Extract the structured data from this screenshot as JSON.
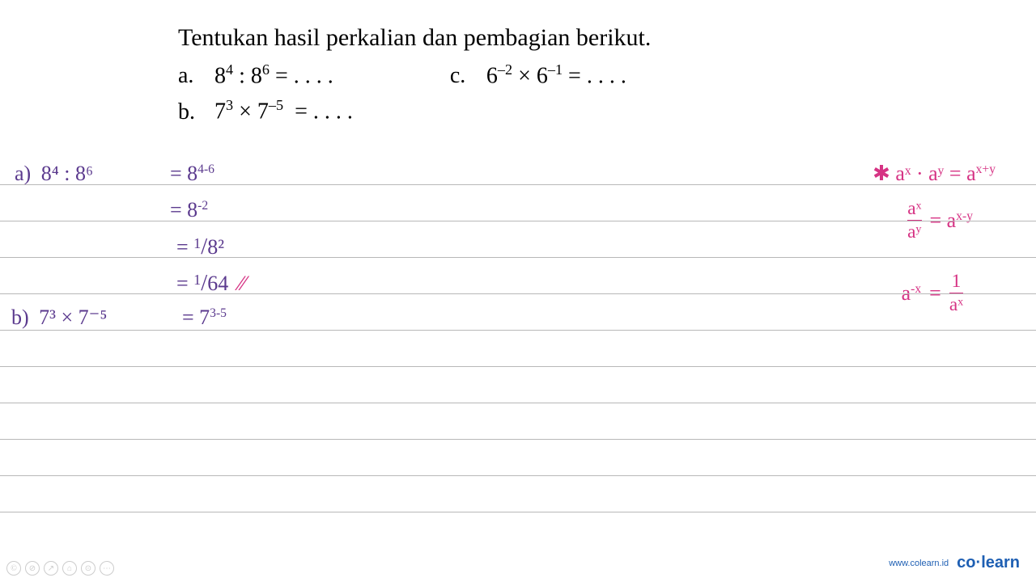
{
  "header": {
    "title": "Tentukan hasil perkalian dan pembagian berikut.",
    "title_fontsize": 30,
    "title_color": "#000000"
  },
  "problems": {
    "a": {
      "label": "a.",
      "expr_base1": "8",
      "expr_exp1": "4",
      "op": ":",
      "expr_base2": "8",
      "expr_exp2": "6",
      "equals": "= . . . ."
    },
    "b": {
      "label": "b.",
      "expr_base1": "7",
      "expr_exp1": "3",
      "op": "×",
      "expr_base2": "7",
      "expr_exp2": "–5",
      "equals": "= . . . ."
    },
    "c": {
      "label": "c.",
      "expr_base1": "6",
      "expr_exp1": "–2",
      "op": "×",
      "expr_base2": "6",
      "expr_exp2": "–1",
      "equals": "= . . . ."
    }
  },
  "work": {
    "a": {
      "label": "a)",
      "lhs": "8⁴ : 8⁶",
      "step1": "= 8",
      "step1_exp": "4-6",
      "step2": "= 8",
      "step2_exp": "-2",
      "step3_prefix": "= ",
      "step3_num": "1",
      "step3_slash": "/",
      "step3_den": "8²",
      "step4_prefix": "= ",
      "step4_num": "1",
      "step4_slash": "/",
      "step4_den": "64",
      "checkmark": "⁄⁄"
    },
    "b": {
      "label": "b)",
      "lhs": "7³ × 7⁻⁵",
      "step1": "= 7",
      "step1_exp": "3-5"
    }
  },
  "rules": {
    "asterisk": "✱",
    "rule1_lhs": "aˣ · aʸ",
    "rule1_rhs": "= a",
    "rule1_exp": "x+y",
    "rule2_num": "aˣ",
    "rule2_den": "aʸ",
    "rule2_rhs": "= a",
    "rule2_exp": "x-y",
    "rule3_lhs": "a",
    "rule3_lhs_exp": "-x",
    "rule3_eq": "=",
    "rule3_num": "1",
    "rule3_den": "aˣ"
  },
  "notebook": {
    "line_color": "#b8b8b8",
    "line_positions": [
      228,
      273,
      318,
      363,
      408,
      453,
      498,
      543,
      588,
      633
    ]
  },
  "colors": {
    "purple": "#5b3a8e",
    "pink": "#d63384",
    "text": "#000000",
    "line": "#b8b8b8",
    "brand": "#1e5fb3"
  },
  "footer": {
    "url": "www.colearn.id",
    "logo_part1": "co",
    "logo_dot": "·",
    "logo_part2": "learn"
  },
  "controls": {
    "icons": [
      "©",
      "⊘",
      "↗",
      "⌂",
      "⊙",
      "⋯"
    ]
  }
}
